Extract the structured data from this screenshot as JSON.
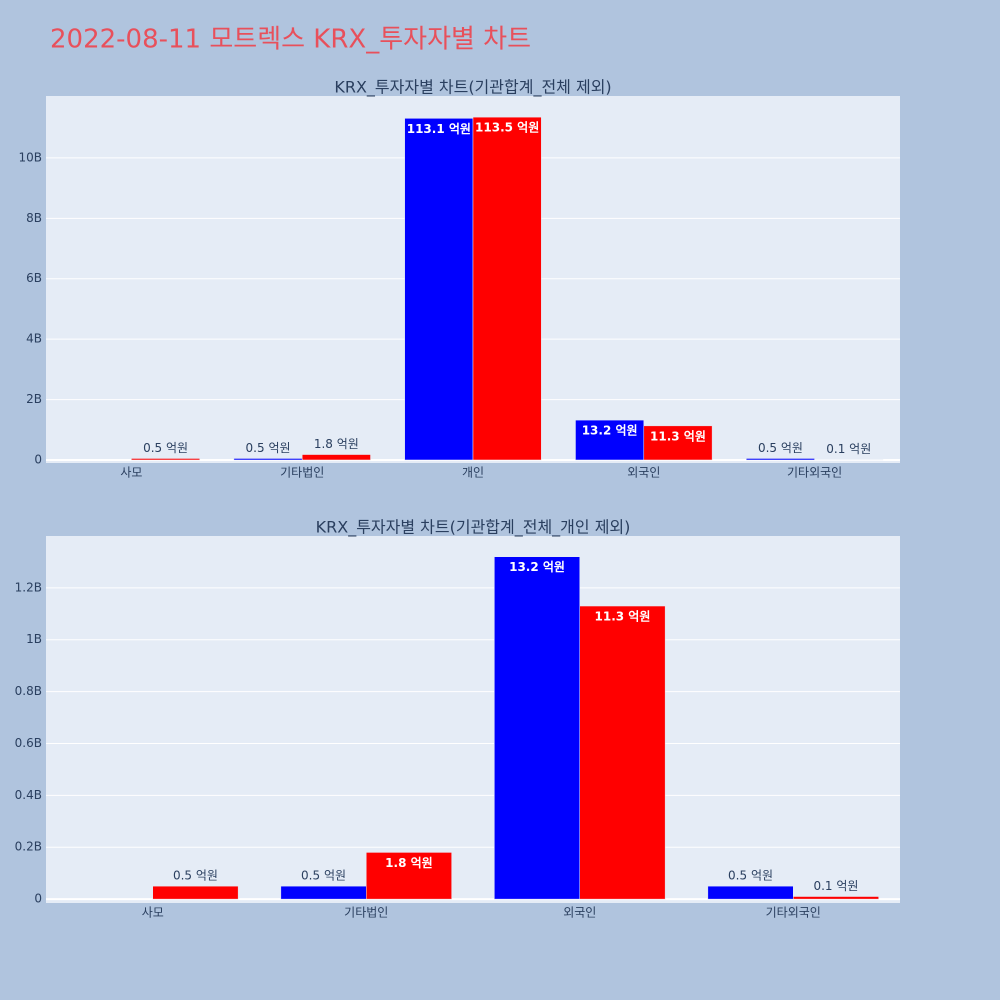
{
  "title": "2022-08-11 모트렉스 KRX_투자자별 차트",
  "chart_data": [
    {
      "type": "bar",
      "title": "KRX_투자자별 차트(기관합계_전체 제외)",
      "categories": [
        "사모",
        "기타법인",
        "개인",
        "외국인",
        "기타외국인"
      ],
      "series": [
        {
          "color": "#0000ff",
          "values": [
            null,
            50000000,
            11310000000,
            1320000000,
            50000000
          ],
          "value_labels": [
            null,
            "0.5 억원",
            "113.1 억원",
            "13.2 억원",
            "0.5 억원"
          ]
        },
        {
          "color": "#ff0000",
          "values": [
            50000000,
            180000000,
            11350000000,
            1130000000,
            10000000
          ],
          "value_labels": [
            "0.5 억원",
            "1.8 억원",
            "113.5 억원",
            "11.3 억원",
            "0.1 억원"
          ]
        }
      ],
      "ylim": [
        -100000000,
        12050000000
      ],
      "yticks": [
        0,
        {
          "value": 2000000000,
          "label": "2B"
        },
        {
          "value": 4000000000,
          "label": "4B"
        },
        {
          "value": 6000000000,
          "label": "6B"
        },
        {
          "value": 8000000000,
          "label": "8B"
        },
        {
          "value": 10000000000,
          "label": "10B"
        }
      ],
      "grid": true
    },
    {
      "type": "bar",
      "title": "KRX_투자자별 차트(기관합계_전체_개인 제외)",
      "categories": [
        "사모",
        "기타법인",
        "외국인",
        "기타외국인"
      ],
      "series": [
        {
          "color": "#0000ff",
          "values": [
            null,
            50000000,
            1320000000,
            50000000
          ],
          "value_labels": [
            null,
            "0.5 억원",
            "13.2 억원",
            "0.5 억원"
          ]
        },
        {
          "color": "#ff0000",
          "values": [
            50000000,
            180000000,
            1130000000,
            10000000
          ],
          "value_labels": [
            "0.5 억원",
            "1.8 억원",
            "11.3 억원",
            "0.1 억원"
          ]
        }
      ],
      "ylim": [
        -15000000,
        1400000000
      ],
      "yticks": [
        0,
        {
          "value": 200000000,
          "label": "0.2B"
        },
        {
          "value": 400000000,
          "label": "0.4B"
        },
        {
          "value": 600000000,
          "label": "0.6B"
        },
        {
          "value": 800000000,
          "label": "0.8B"
        },
        {
          "value": 1000000000,
          "label": "1B"
        },
        {
          "value": 1200000000,
          "label": "1.2B"
        }
      ],
      "grid": true
    }
  ]
}
